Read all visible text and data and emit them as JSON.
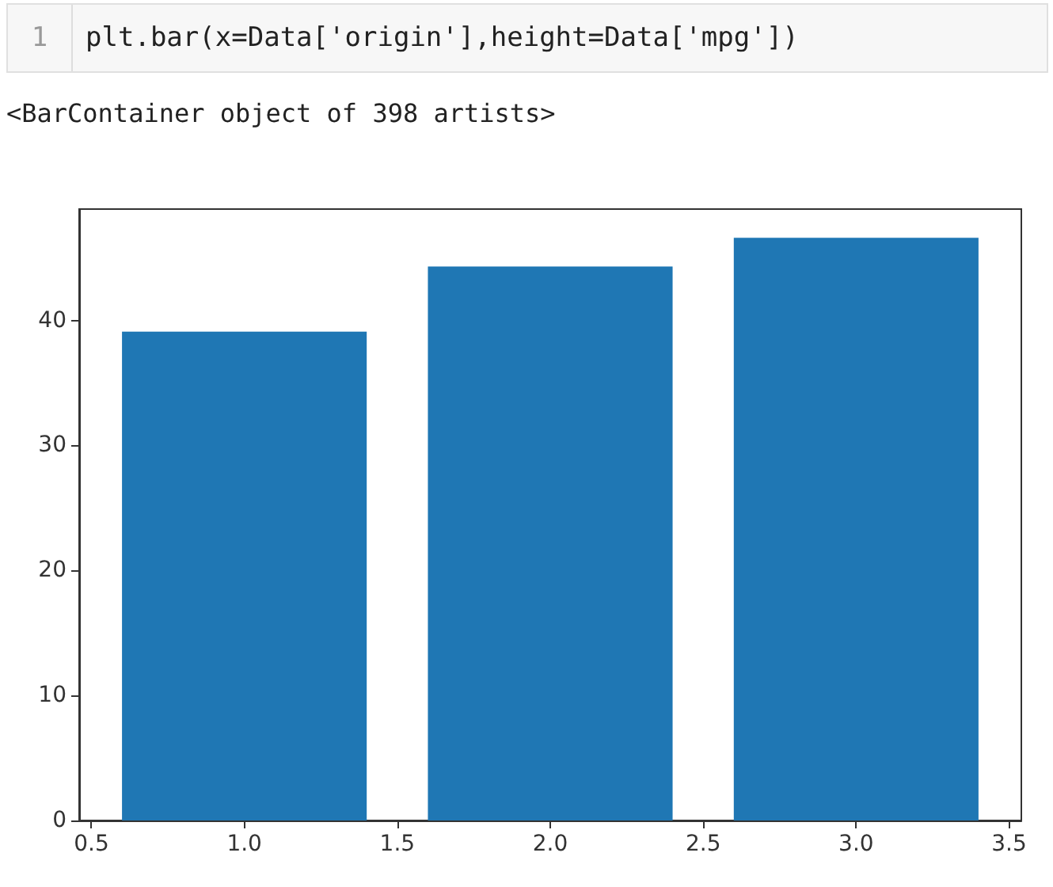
{
  "chart_data": {
    "type": "bar",
    "annotations": [
      "1",
      "plt.bar(x=Data['origin'],height=Data['mpg'])",
      "<BarContainer object of 398 artists>"
    ],
    "x": [
      1,
      2,
      3
    ],
    "values": [
      39.1,
      44.3,
      46.6
    ],
    "color": "#1f77b4",
    "xlim": [
      0.46,
      3.54
    ],
    "xticks": [
      0.5,
      {
        "value": 1,
        "label": "1.0"
      },
      1.5,
      {
        "value": 2,
        "label": "2.0"
      },
      2.5,
      {
        "value": 3,
        "label": "3.0"
      },
      3.5
    ],
    "ylim": [
      0,
      48.9
    ],
    "yticks": [
      0,
      10,
      20,
      30,
      40
    ],
    "grid": false
  }
}
